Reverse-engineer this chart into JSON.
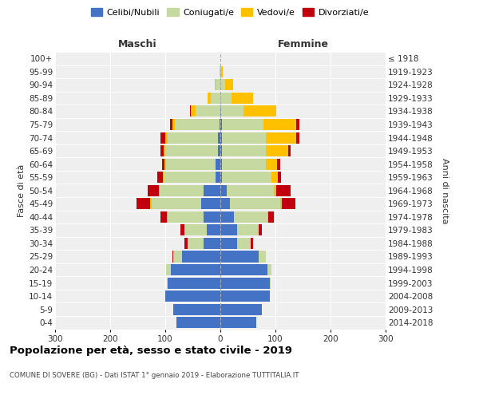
{
  "age_groups": [
    "0-4",
    "5-9",
    "10-14",
    "15-19",
    "20-24",
    "25-29",
    "30-34",
    "35-39",
    "40-44",
    "45-49",
    "50-54",
    "55-59",
    "60-64",
    "65-69",
    "70-74",
    "75-79",
    "80-84",
    "85-89",
    "90-94",
    "95-99",
    "100+"
  ],
  "birth_years": [
    "2014-2018",
    "2009-2013",
    "2004-2008",
    "1999-2003",
    "1994-1998",
    "1989-1993",
    "1984-1988",
    "1979-1983",
    "1974-1978",
    "1969-1973",
    "1964-1968",
    "1959-1963",
    "1954-1958",
    "1949-1953",
    "1944-1948",
    "1939-1943",
    "1934-1938",
    "1929-1933",
    "1924-1928",
    "1919-1923",
    "≤ 1918"
  ],
  "male": {
    "celibi": [
      80,
      85,
      100,
      95,
      90,
      70,
      30,
      25,
      30,
      35,
      30,
      8,
      8,
      5,
      5,
      2,
      0,
      0,
      0,
      0,
      0
    ],
    "coniugati": [
      0,
      0,
      0,
      2,
      8,
      15,
      30,
      40,
      65,
      90,
      80,
      95,
      90,
      95,
      90,
      80,
      45,
      18,
      8,
      2,
      0
    ],
    "vedovi": [
      0,
      0,
      0,
      0,
      0,
      0,
      0,
      0,
      2,
      2,
      2,
      2,
      3,
      3,
      5,
      5,
      8,
      5,
      2,
      0,
      0
    ],
    "divorziati": [
      0,
      0,
      0,
      0,
      0,
      2,
      5,
      8,
      12,
      25,
      20,
      10,
      5,
      5,
      8,
      5,
      2,
      0,
      0,
      0,
      0
    ]
  },
  "female": {
    "nubili": [
      65,
      75,
      90,
      90,
      85,
      70,
      30,
      30,
      25,
      18,
      12,
      3,
      3,
      3,
      3,
      3,
      2,
      0,
      0,
      0,
      0
    ],
    "coniugate": [
      0,
      0,
      0,
      2,
      8,
      12,
      25,
      40,
      60,
      90,
      85,
      90,
      80,
      80,
      80,
      75,
      40,
      20,
      8,
      2,
      0
    ],
    "vedove": [
      0,
      0,
      0,
      0,
      0,
      0,
      0,
      0,
      2,
      3,
      5,
      12,
      20,
      40,
      55,
      60,
      60,
      40,
      15,
      2,
      0
    ],
    "divorziate": [
      0,
      0,
      0,
      0,
      0,
      0,
      5,
      5,
      10,
      25,
      25,
      5,
      5,
      5,
      5,
      5,
      0,
      0,
      0,
      0,
      0
    ]
  },
  "colors": {
    "celibi": "#4472c4",
    "coniugati": "#c5d9a0",
    "vedovi": "#ffc000",
    "divorziati": "#c0000c"
  },
  "legend_labels": [
    "Celibi/Nubili",
    "Coniugati/e",
    "Vedovi/e",
    "Divorziati/e"
  ],
  "xlim": 300,
  "title": "Popolazione per età, sesso e stato civile - 2019",
  "subtitle": "COMUNE DI SOVERE (BG) - Dati ISTAT 1° gennaio 2019 - Elaborazione TUTTITALIA.IT",
  "ylabel_left": "Fasce di età",
  "ylabel_right": "Anni di nascita",
  "xlabel_left": "Maschi",
  "xlabel_right": "Femmine",
  "bg_color": "#efefef"
}
